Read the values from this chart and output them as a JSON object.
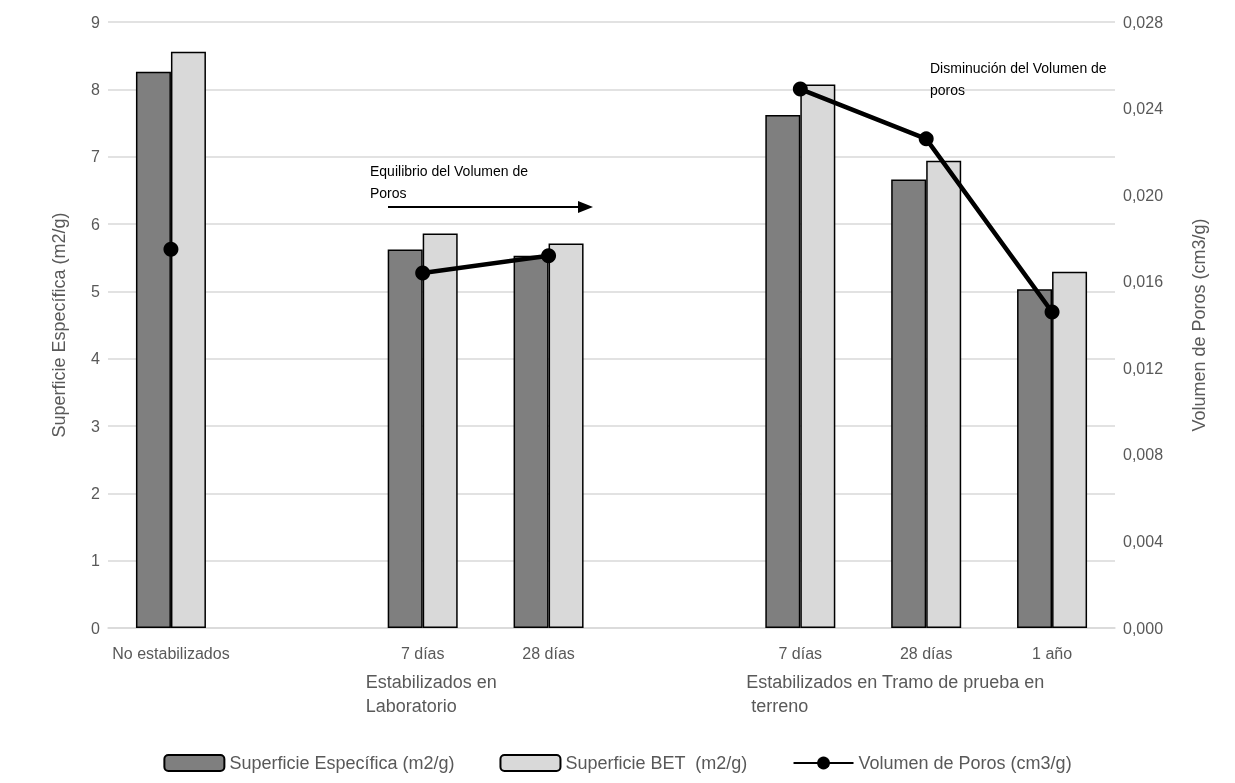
{
  "chart_data": {
    "type": "bar",
    "ylabel": "Superficie Específica (m2/g)",
    "y2label": "Volumen de Poros (cm3/g)",
    "categories": [
      "No estabilizados",
      null,
      "7 días",
      "28 días",
      null,
      "7 días",
      "28 días",
      "1 año"
    ],
    "series": [
      {
        "name": "Superficie Específica (m2/g)",
        "color": "#7f7f7f",
        "values": [
          8.26,
          null,
          5.62,
          5.53,
          null,
          7.62,
          6.66,
          5.03
        ]
      },
      {
        "name": "Superficie BET  (m2/g)",
        "color": "#d9d9d9",
        "values": [
          8.56,
          null,
          5.86,
          5.71,
          null,
          8.07,
          6.94,
          5.29
        ]
      },
      {
        "name": "Volumen de Poros (cm3/g)",
        "type": "line",
        "axis": "y2",
        "color": "#000000",
        "marker": "circle",
        "line_style": "solid",
        "values": [
          0.0175,
          null,
          0.0164,
          0.0172,
          null,
          0.0249,
          0.0226,
          0.0146
        ]
      }
    ],
    "ylim": [
      0,
      9
    ],
    "yticks": [
      0,
      1,
      2,
      3,
      4,
      5,
      6,
      7,
      8,
      9
    ],
    "y2lim": [
      0,
      0.028
    ],
    "y2ticks": [
      {
        "value": 0,
        "label": "0,000"
      },
      {
        "value": 0.004,
        "label": "0,004"
      },
      {
        "value": 0.008,
        "label": "0,008"
      },
      {
        "value": 0.012,
        "label": "0,012"
      },
      {
        "value": 0.016,
        "label": "0,016"
      },
      {
        "value": 0.02,
        "label": "0,020"
      },
      {
        "value": 0.024,
        "label": "0,024"
      },
      {
        "value": 0.028,
        "label": "0,028"
      }
    ],
    "grid": "y",
    "legend": "bottom",
    "annotations": [
      "Equilibrio del Volumen de Poros",
      "Disminución del Volumen de poros",
      "Estabilizados en Laboratorio",
      "Estabilizados en Tramo de prueba en terreno"
    ]
  }
}
